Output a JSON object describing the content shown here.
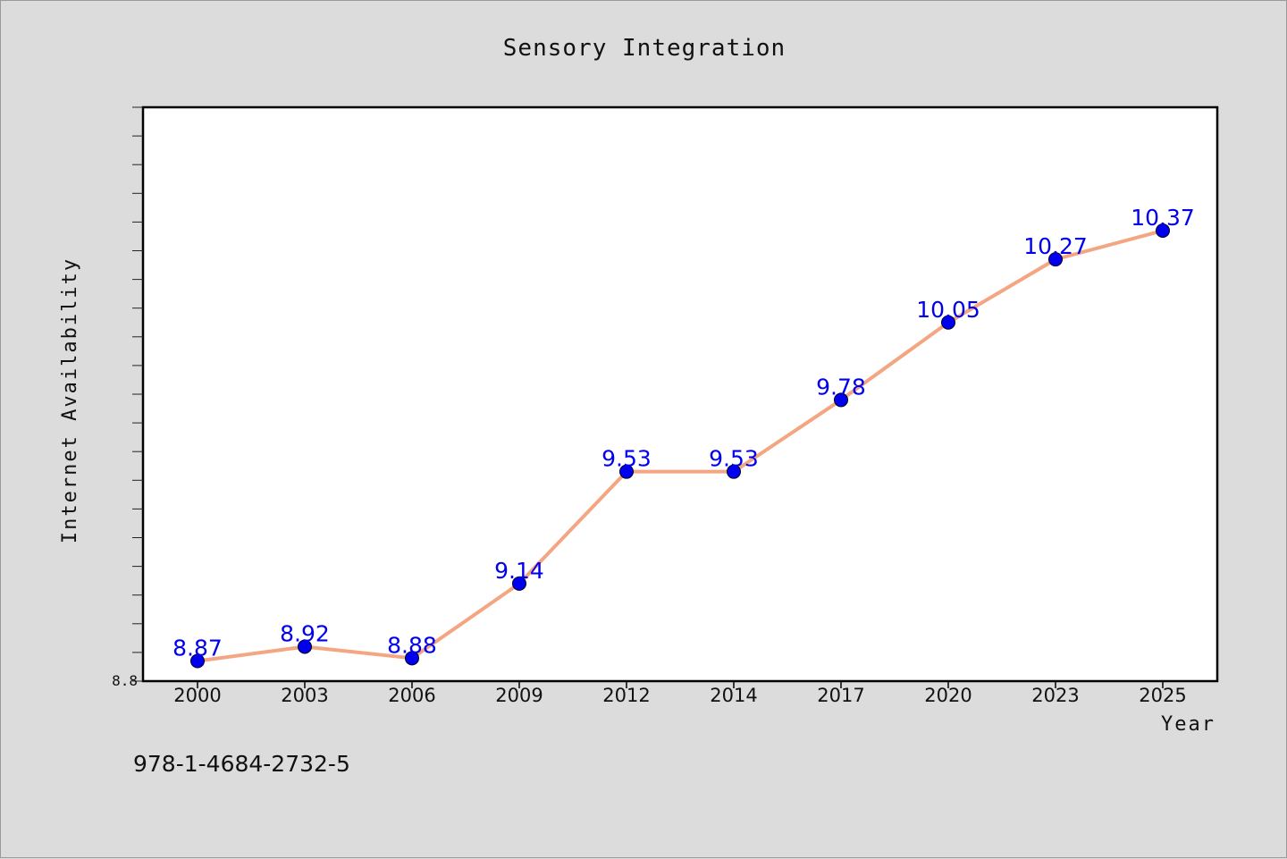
{
  "chart_data": {
    "type": "line",
    "title": "Sensory Integration",
    "xlabel": "Year",
    "ylabel": "Internet Availability",
    "categories": [
      "2000",
      "2003",
      "2006",
      "2009",
      "2012",
      "2014",
      "2017",
      "2020",
      "2023",
      "2025"
    ],
    "series": [
      {
        "values": [
          8.87,
          8.92,
          8.88,
          9.14,
          9.53,
          9.53,
          9.78,
          10.05,
          10.27,
          10.37
        ],
        "labels": [
          "8.87",
          "8.92",
          "8.88",
          "9.14",
          "9.53",
          "9.53",
          "9.78",
          "10.05",
          "10.27",
          "10.37"
        ],
        "line_color": "#f4a582",
        "marker_color": "#0000ee"
      }
    ],
    "ylim": [
      8.8,
      10.8
    ],
    "yticks_labeled": [
      "8.8"
    ],
    "grid": false,
    "legend": "none"
  },
  "footer": {
    "isbn": "978-1-4684-2732-5"
  },
  "colors": {
    "background": "#dcdcdc",
    "plot_bg": "#ffffff",
    "line": "#f4a582",
    "marker": "#0000ee",
    "label": "#0000ee"
  }
}
